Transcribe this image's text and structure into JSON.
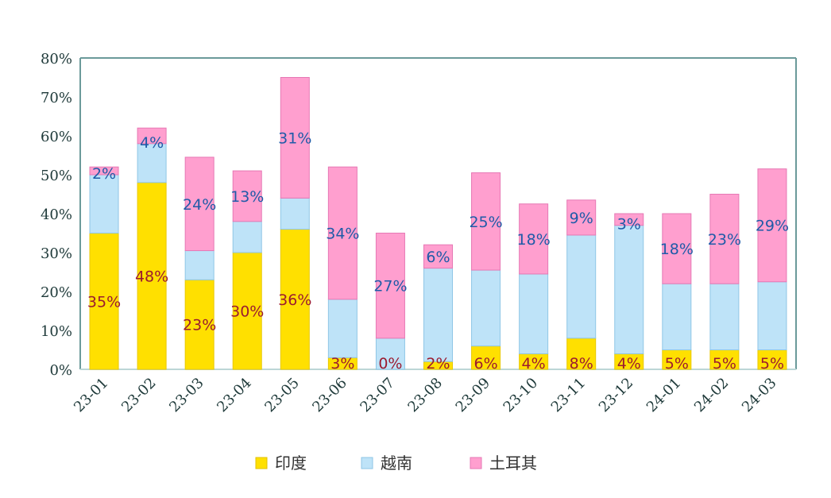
{
  "chart_data": {
    "type": "bar",
    "stacked": true,
    "title": "",
    "xlabel": "",
    "ylabel": "",
    "ylim": [
      0,
      80
    ],
    "yticks": [
      "0%",
      "10%",
      "20%",
      "30%",
      "40%",
      "50%",
      "60%",
      "70%",
      "80%"
    ],
    "ytick_values": [
      0,
      10,
      20,
      30,
      40,
      50,
      60,
      70,
      80
    ],
    "categories": [
      "23-01",
      "23-02",
      "23-03",
      "23-04",
      "23-05",
      "23-06",
      "23-07",
      "23-08",
      "23-09",
      "23-10",
      "23-11",
      "23-12",
      "24-01",
      "24-02",
      "24-03"
    ],
    "series": [
      {
        "name": "印度",
        "color": "#FFE000",
        "label_color": "#9B1B30",
        "values": [
          35,
          48,
          23,
          30,
          36,
          3,
          0,
          2,
          6,
          4,
          8,
          4,
          5,
          5,
          5
        ],
        "labels": [
          "35%",
          "48%",
          "23%",
          "30%",
          "36%",
          "3%",
          "0%",
          "2%",
          "6%",
          "4%",
          "8%",
          "4%",
          "5%",
          "5%",
          "5%"
        ]
      },
      {
        "name": "越南",
        "color": "#BEE3F8",
        "values": [
          15,
          10,
          7.5,
          8,
          8,
          15,
          8,
          24,
          19.5,
          20.5,
          26.5,
          33,
          17,
          17,
          17.5
        ]
      },
      {
        "name": "土耳其",
        "color": "#FF9FCF",
        "label_color": "#1F5BA8",
        "values": [
          2,
          4,
          24,
          13,
          31,
          34,
          27,
          6,
          25,
          18,
          9,
          3,
          18,
          23,
          29
        ],
        "labels": [
          "2%",
          "4%",
          "24%",
          "13%",
          "31%",
          "34%",
          "27%",
          "6%",
          "25%",
          "18%",
          "9%",
          "3%",
          "18%",
          "23%",
          "29%"
        ]
      }
    ],
    "grid": false,
    "legend": {
      "position": "bottom",
      "entries": [
        "印度",
        "越南",
        "土耳其"
      ]
    }
  }
}
